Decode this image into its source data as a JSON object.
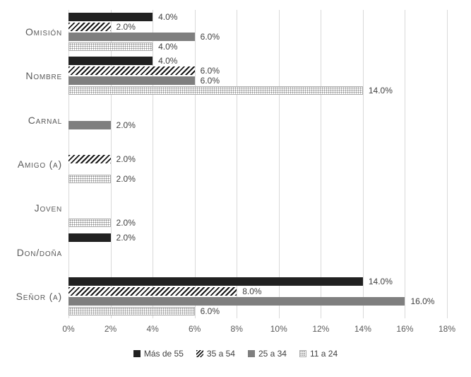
{
  "chart_data": {
    "type": "bar",
    "orientation": "horizontal",
    "title": "",
    "categories": [
      "Omisión",
      "Nombre",
      "Carnal",
      "Amigo (a)",
      "Joven",
      "Don/doña",
      "Señor (a)"
    ],
    "series": [
      {
        "name": "Más de 55",
        "pattern": "solid-black",
        "color": "#212121",
        "values": [
          4.0,
          4.0,
          null,
          null,
          null,
          2.0,
          14.0
        ]
      },
      {
        "name": "35 a 54",
        "pattern": "diagonal-hatch",
        "color": "#161616",
        "values": [
          2.0,
          6.0,
          null,
          2.0,
          null,
          null,
          8.0
        ]
      },
      {
        "name": "25 a 34",
        "pattern": "solid-gray",
        "color": "#7f7f7f",
        "values": [
          6.0,
          6.0,
          2.0,
          null,
          null,
          null,
          16.0
        ]
      },
      {
        "name": "11 a 24",
        "pattern": "dotted",
        "color": "#848484",
        "values": [
          4.0,
          14.0,
          null,
          2.0,
          2.0,
          null,
          6.0
        ]
      }
    ],
    "x_axis": {
      "min": 0,
      "max": 18,
      "tick_values": [
        0,
        2,
        4,
        6,
        8,
        10,
        12,
        14,
        16,
        18
      ],
      "tick_labels": [
        "0%",
        "2%",
        "4%",
        "6%",
        "8%",
        "10%",
        "12%",
        "14%",
        "16%",
        "18%"
      ]
    },
    "data_label_format": "0.0%",
    "data_labels_shown": true,
    "grid": true,
    "legend_position": "bottom",
    "legend": [
      "Más de 55",
      "35 a 54",
      "25 a 34",
      "11 a 24"
    ],
    "colors": {
      "gridline": "#d9d9d9",
      "axis_text": "#595959",
      "category_text": "#595959",
      "data_label_text": "#404040",
      "legend_text": "#404040",
      "background": "#ffffff"
    }
  }
}
